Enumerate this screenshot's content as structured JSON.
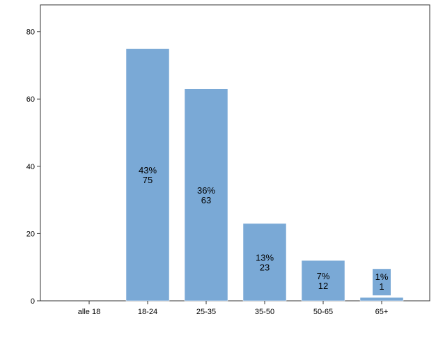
{
  "chart_data": {
    "type": "bar",
    "categories": [
      "alle 18",
      "18-24",
      "25-35",
      "35-50",
      "50-65",
      "65+"
    ],
    "values": [
      0,
      75,
      63,
      23,
      12,
      1
    ],
    "percent_labels": [
      "",
      "43%",
      "36%",
      "13%",
      "7%",
      "1%"
    ],
    "count_labels": [
      "",
      "75",
      "63",
      "23",
      "12",
      "1"
    ],
    "title": "",
    "xlabel": "",
    "ylabel": "",
    "ylim": [
      0,
      88
    ],
    "yticks": [
      0,
      20,
      40,
      60,
      80
    ],
    "ytick_labels": [
      "0",
      "20",
      "40",
      "60",
      "80"
    ],
    "grid": false,
    "bar_color": "#7aa9d6",
    "label_box_color": "#7aa9d6"
  }
}
